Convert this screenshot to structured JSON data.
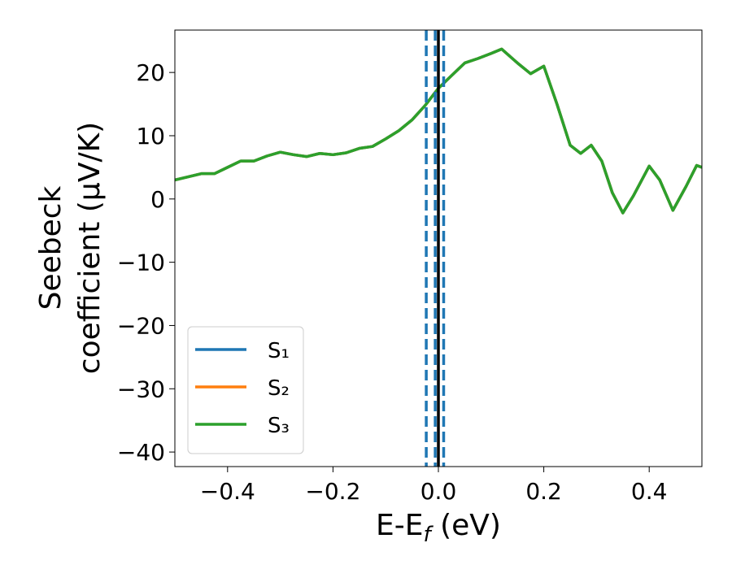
{
  "chart_data": {
    "type": "line",
    "ylabel": [
      "Seebeck",
      "coefficient  (μV/K)"
    ],
    "xlabel": [
      "E-E",
      "f",
      " (eV)"
    ],
    "x": [
      -0.5,
      -0.475,
      -0.45,
      -0.425,
      -0.4,
      -0.375,
      -0.35,
      -0.325,
      -0.3,
      -0.275,
      -0.25,
      -0.225,
      -0.2,
      -0.175,
      -0.15,
      -0.125,
      -0.1,
      -0.075,
      -0.05,
      -0.025,
      0,
      0.025,
      0.05,
      0.075,
      0.1,
      0.12,
      0.15,
      0.175,
      0.2,
      0.225,
      0.25,
      0.27,
      0.29,
      0.31,
      0.33,
      0.35,
      0.37,
      0.4,
      0.42,
      0.445,
      0.47,
      0.49,
      0.5
    ],
    "series": [
      {
        "name": "S₁",
        "color": "#1f77b4",
        "values": [
          3.0,
          3.5,
          4.0,
          4.0,
          5.0,
          6.0,
          6.0,
          6.8,
          7.4,
          7.0,
          6.7,
          7.2,
          7.0,
          7.3,
          8.0,
          8.3,
          9.5,
          10.8,
          12.5,
          14.8,
          17.5,
          19.5,
          21.5,
          22.2,
          23.0,
          23.7,
          21.5,
          19.8,
          21.0,
          15.0,
          8.5,
          7.2,
          8.5,
          6.0,
          1.0,
          -2.2,
          0.5,
          5.2,
          3.0,
          -1.8,
          2.0,
          5.3,
          5.0
        ]
      },
      {
        "name": "S₂",
        "color": "#ff7f0e",
        "values": [
          3.0,
          3.5,
          4.0,
          4.0,
          5.0,
          6.0,
          6.0,
          6.8,
          7.4,
          7.0,
          6.7,
          7.2,
          7.0,
          7.3,
          8.0,
          8.3,
          9.5,
          10.8,
          12.5,
          14.8,
          17.5,
          19.5,
          21.5,
          22.2,
          23.0,
          23.7,
          21.5,
          19.8,
          21.0,
          15.0,
          8.5,
          7.2,
          8.5,
          6.0,
          1.0,
          -2.2,
          0.5,
          5.2,
          3.0,
          -1.8,
          2.0,
          5.3,
          5.0
        ]
      },
      {
        "name": "S₃",
        "color": "#2ca02c",
        "values": [
          3.0,
          3.5,
          4.0,
          4.0,
          5.0,
          6.0,
          6.0,
          6.8,
          7.4,
          7.0,
          6.7,
          7.2,
          7.0,
          7.3,
          8.0,
          8.3,
          9.5,
          10.8,
          12.5,
          14.8,
          17.5,
          19.5,
          21.5,
          22.2,
          23.0,
          23.7,
          21.5,
          19.8,
          21.0,
          15.0,
          8.5,
          7.2,
          8.5,
          6.0,
          1.0,
          -2.2,
          0.5,
          5.2,
          3.0,
          -1.8,
          2.0,
          5.3,
          5.0
        ]
      }
    ],
    "vlines": [
      {
        "x": -0.023,
        "color": "#1f77b4",
        "style": "dashed"
      },
      {
        "x": -0.006,
        "color": "#1f77b4",
        "style": "dashed"
      },
      {
        "x": 0.01,
        "color": "#1f77b4",
        "style": "dashed"
      },
      {
        "x": 0,
        "color": "#000000",
        "style": "solid"
      }
    ],
    "xlim": [
      -0.5,
      0.5
    ],
    "xticks": [
      {
        "value": -0.4,
        "label": "−0.4"
      },
      {
        "value": -0.2,
        "label": "−0.2"
      },
      {
        "value": 0,
        "label": "0.0"
      },
      0.2,
      0.4
    ],
    "ylim": [
      -42.3,
      26.7
    ],
    "yticks": [
      {
        "value": -40,
        "label": "−40"
      },
      {
        "value": -30,
        "label": "−30"
      },
      {
        "value": -20,
        "label": "−20"
      },
      {
        "value": -10,
        "label": "−10"
      },
      0,
      10,
      20
    ],
    "legend": "lower left",
    "grid": false
  }
}
